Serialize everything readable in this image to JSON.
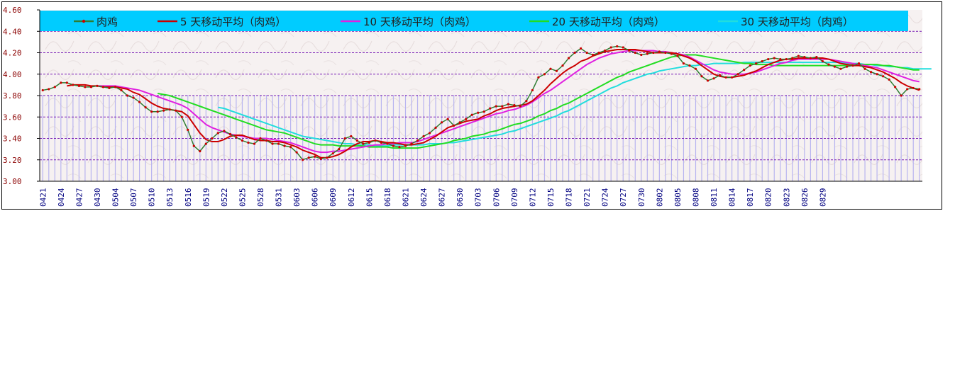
{
  "chart_data": {
    "type": "line",
    "title": "",
    "xlabel": "",
    "ylabel": "",
    "ylim": [
      3.0,
      4.6
    ],
    "yticks": [
      "3.00",
      "3.20",
      "3.40",
      "3.60",
      "3.80",
      "4.00",
      "4.20",
      "4.40",
      "4.60"
    ],
    "ytick_values": [
      3.0,
      3.2,
      3.4,
      3.6,
      3.8,
      4.0,
      4.2,
      4.4,
      4.6
    ],
    "xticks": [
      "0421",
      "0424",
      "0427",
      "0430",
      "0504",
      "0507",
      "0510",
      "0513",
      "0516",
      "0519",
      "0522",
      "0525",
      "0528",
      "0531",
      "0603",
      "0606",
      "0609",
      "0612",
      "0615",
      "0618",
      "0621",
      "0624",
      "0627",
      "0630",
      "0703",
      "0706",
      "0709",
      "0712",
      "0715",
      "0718",
      "0721",
      "0724",
      "0727",
      "0730",
      "0802",
      "0805",
      "0808",
      "0811",
      "0814",
      "0817",
      "0820",
      "0823",
      "0826",
      "0829"
    ],
    "grid": true,
    "legend_position": "top",
    "colors": {
      "price": "#2e7d32",
      "price_marker": "#cc0000",
      "ma5": "#cc0000",
      "ma10": "#e020e0",
      "ma20": "#22dd22",
      "ma30": "#22dddd",
      "legend_bg": "#00ccff",
      "grid": "#7a1fb5",
      "bars": "#b8b4f0",
      "axis_label": "#8b0000"
    },
    "series": [
      {
        "name": "肉鸡",
        "key": "price",
        "values": [
          3.85,
          3.86,
          3.88,
          3.92,
          3.92,
          3.9,
          3.89,
          3.88,
          3.88,
          3.89,
          3.88,
          3.87,
          3.88,
          3.85,
          3.8,
          3.78,
          3.74,
          3.69,
          3.65,
          3.65,
          3.66,
          3.67,
          3.66,
          3.6,
          3.48,
          3.33,
          3.28,
          3.35,
          3.4,
          3.45,
          3.47,
          3.44,
          3.41,
          3.38,
          3.36,
          3.35,
          3.4,
          3.38,
          3.35,
          3.35,
          3.33,
          3.32,
          3.27,
          3.2,
          3.22,
          3.23,
          3.21,
          3.22,
          3.26,
          3.3,
          3.4,
          3.42,
          3.38,
          3.35,
          3.36,
          3.38,
          3.36,
          3.35,
          3.33,
          3.32,
          3.33,
          3.35,
          3.38,
          3.42,
          3.45,
          3.5,
          3.55,
          3.58,
          3.52,
          3.55,
          3.58,
          3.62,
          3.64,
          3.65,
          3.68,
          3.7,
          3.7,
          3.72,
          3.71,
          3.7,
          3.75,
          3.85,
          3.97,
          4.0,
          4.05,
          4.03,
          4.08,
          4.15,
          4.2,
          4.24,
          4.2,
          4.18,
          4.2,
          4.22,
          4.25,
          4.26,
          4.25,
          4.22,
          4.2,
          4.18,
          4.19,
          4.2,
          4.21,
          4.2,
          4.19,
          4.17,
          4.1,
          4.08,
          4.05,
          3.98,
          3.94,
          3.96,
          3.99,
          3.97,
          3.97,
          4.0,
          4.04,
          4.08,
          4.1,
          4.12,
          4.14,
          4.15,
          4.14,
          4.14,
          4.15,
          4.17,
          4.16,
          4.15,
          4.16,
          4.12,
          4.09,
          4.07,
          4.05,
          4.07,
          4.08,
          4.1,
          4.05,
          4.02,
          4.0,
          3.98,
          3.95,
          3.88,
          3.8,
          3.86,
          3.87,
          3.86
        ]
      },
      {
        "name": "5 天移动平均（肉鸡）",
        "key": "ma5",
        "values": [
          null,
          null,
          null,
          null,
          3.89,
          3.9,
          3.9,
          3.9,
          3.89,
          3.89,
          3.88,
          3.88,
          3.88,
          3.87,
          3.86,
          3.83,
          3.81,
          3.77,
          3.73,
          3.7,
          3.68,
          3.67,
          3.66,
          3.65,
          3.61,
          3.53,
          3.45,
          3.39,
          3.37,
          3.37,
          3.39,
          3.42,
          3.43,
          3.43,
          3.41,
          3.39,
          3.38,
          3.38,
          3.37,
          3.37,
          3.36,
          3.34,
          3.32,
          3.29,
          3.27,
          3.25,
          3.22,
          3.22,
          3.23,
          3.25,
          3.28,
          3.32,
          3.35,
          3.37,
          3.37,
          3.38,
          3.37,
          3.36,
          3.36,
          3.35,
          3.34,
          3.34,
          3.35,
          3.36,
          3.39,
          3.42,
          3.46,
          3.5,
          3.52,
          3.54,
          3.56,
          3.57,
          3.58,
          3.61,
          3.63,
          3.66,
          3.68,
          3.69,
          3.7,
          3.71,
          3.72,
          3.75,
          3.8,
          3.85,
          3.91,
          3.96,
          4.01,
          4.05,
          4.08,
          4.12,
          4.14,
          4.17,
          4.19,
          4.21,
          4.22,
          4.23,
          4.23,
          4.23,
          4.23,
          4.22,
          4.21,
          4.2,
          4.2,
          4.2,
          4.2,
          4.19,
          4.17,
          4.15,
          4.12,
          4.08,
          4.04,
          4.0,
          3.98,
          3.97,
          3.97,
          3.98,
          3.99,
          4.01,
          4.03,
          4.06,
          4.09,
          4.11,
          4.13,
          4.14,
          4.14,
          4.15,
          4.15,
          4.15,
          4.15,
          4.15,
          4.14,
          4.12,
          4.1,
          4.09,
          4.08,
          4.08,
          4.07,
          4.06,
          4.04,
          4.02,
          3.99,
          3.96,
          3.92,
          3.89,
          3.87,
          3.85
        ]
      },
      {
        "name": "10 天移动平均（肉鸡）",
        "key": "ma10",
        "values": [
          null,
          null,
          null,
          null,
          null,
          null,
          null,
          null,
          null,
          3.89,
          3.89,
          3.89,
          3.89,
          3.88,
          3.87,
          3.86,
          3.85,
          3.83,
          3.81,
          3.79,
          3.77,
          3.75,
          3.73,
          3.71,
          3.68,
          3.63,
          3.58,
          3.53,
          3.5,
          3.48,
          3.46,
          3.44,
          3.43,
          3.42,
          3.41,
          3.4,
          3.4,
          3.4,
          3.39,
          3.38,
          3.37,
          3.36,
          3.34,
          3.32,
          3.3,
          3.28,
          3.27,
          3.27,
          3.28,
          3.28,
          3.29,
          3.3,
          3.31,
          3.32,
          3.33,
          3.34,
          3.34,
          3.35,
          3.35,
          3.36,
          3.36,
          3.36,
          3.37,
          3.39,
          3.41,
          3.43,
          3.45,
          3.47,
          3.49,
          3.51,
          3.53,
          3.55,
          3.57,
          3.59,
          3.61,
          3.63,
          3.64,
          3.66,
          3.67,
          3.69,
          3.71,
          3.74,
          3.78,
          3.82,
          3.85,
          3.89,
          3.93,
          3.97,
          4.01,
          4.05,
          4.09,
          4.12,
          4.15,
          4.17,
          4.19,
          4.2,
          4.21,
          4.22,
          4.22,
          4.22,
          4.22,
          4.22,
          4.21,
          4.21,
          4.2,
          4.19,
          4.18,
          4.16,
          4.13,
          4.1,
          4.07,
          4.04,
          4.02,
          4.01,
          4.0,
          4.0,
          4.0,
          4.01,
          4.02,
          4.04,
          4.06,
          4.08,
          4.1,
          4.11,
          4.13,
          4.14,
          4.14,
          4.14,
          4.14,
          4.14,
          4.14,
          4.13,
          4.12,
          4.11,
          4.1,
          4.09,
          4.08,
          4.07,
          4.06,
          4.04,
          4.02,
          4.0,
          3.98,
          3.96,
          3.94,
          3.93
        ]
      },
      {
        "name": "20 天移动平均（肉鸡）",
        "key": "ma20",
        "values": [
          null,
          null,
          null,
          null,
          null,
          null,
          null,
          null,
          null,
          null,
          null,
          null,
          null,
          null,
          null,
          null,
          null,
          null,
          null,
          3.82,
          3.81,
          3.8,
          3.78,
          3.76,
          3.74,
          3.72,
          3.7,
          3.68,
          3.66,
          3.64,
          3.62,
          3.6,
          3.58,
          3.56,
          3.54,
          3.52,
          3.5,
          3.48,
          3.47,
          3.46,
          3.45,
          3.43,
          3.41,
          3.39,
          3.37,
          3.35,
          3.34,
          3.34,
          3.34,
          3.33,
          3.33,
          3.33,
          3.33,
          3.33,
          3.32,
          3.32,
          3.32,
          3.32,
          3.31,
          3.31,
          3.31,
          3.31,
          3.31,
          3.32,
          3.33,
          3.34,
          3.35,
          3.36,
          3.38,
          3.39,
          3.4,
          3.42,
          3.43,
          3.44,
          3.46,
          3.47,
          3.49,
          3.51,
          3.53,
          3.54,
          3.56,
          3.58,
          3.61,
          3.63,
          3.66,
          3.68,
          3.71,
          3.73,
          3.76,
          3.79,
          3.82,
          3.85,
          3.88,
          3.91,
          3.94,
          3.97,
          3.99,
          4.02,
          4.04,
          4.06,
          4.08,
          4.1,
          4.12,
          4.14,
          4.16,
          4.17,
          4.18,
          4.18,
          4.18,
          4.17,
          4.16,
          4.15,
          4.14,
          4.13,
          4.12,
          4.11,
          4.1,
          4.1,
          4.09,
          4.09,
          4.09,
          4.08,
          4.08,
          4.08,
          4.08,
          4.08,
          4.08,
          4.08,
          4.08,
          4.08,
          4.08,
          4.08,
          4.08,
          4.08,
          4.09,
          4.09,
          4.09,
          4.09,
          4.09,
          4.08,
          4.08,
          4.07,
          4.06,
          4.05,
          4.04,
          4.04
        ]
      },
      {
        "name": "30 天移动平均（肉鸡）",
        "key": "ma30",
        "values": [
          null,
          null,
          null,
          null,
          null,
          null,
          null,
          null,
          null,
          null,
          null,
          null,
          null,
          null,
          null,
          null,
          null,
          null,
          null,
          null,
          null,
          null,
          null,
          null,
          null,
          null,
          null,
          null,
          null,
          3.69,
          3.68,
          3.66,
          3.64,
          3.62,
          3.6,
          3.58,
          3.56,
          3.54,
          3.52,
          3.5,
          3.48,
          3.46,
          3.44,
          3.42,
          3.41,
          3.4,
          3.39,
          3.38,
          3.37,
          3.36,
          3.35,
          3.35,
          3.34,
          3.34,
          3.34,
          3.33,
          3.33,
          3.33,
          3.34,
          3.34,
          3.34,
          3.34,
          3.34,
          3.34,
          3.35,
          3.35,
          3.35,
          3.36,
          3.36,
          3.37,
          3.38,
          3.39,
          3.4,
          3.41,
          3.42,
          3.43,
          3.44,
          3.46,
          3.47,
          3.49,
          3.51,
          3.53,
          3.55,
          3.57,
          3.59,
          3.61,
          3.64,
          3.66,
          3.69,
          3.72,
          3.75,
          3.78,
          3.81,
          3.84,
          3.87,
          3.89,
          3.92,
          3.94,
          3.96,
          3.98,
          4.0,
          4.01,
          4.03,
          4.04,
          4.05,
          4.06,
          4.07,
          4.08,
          4.08,
          4.09,
          4.09,
          4.1,
          4.1,
          4.1,
          4.1,
          4.1,
          4.11,
          4.11,
          4.11,
          4.11,
          4.11,
          4.11,
          4.11,
          4.11,
          4.11,
          4.11,
          4.11,
          4.11,
          4.11,
          4.11,
          4.11,
          4.11,
          4.11,
          4.1,
          4.1,
          4.1,
          4.09,
          4.09,
          4.08,
          4.08,
          4.07,
          4.07,
          4.06,
          4.06,
          4.05,
          4.05,
          4.05,
          4.05
        ]
      }
    ]
  }
}
